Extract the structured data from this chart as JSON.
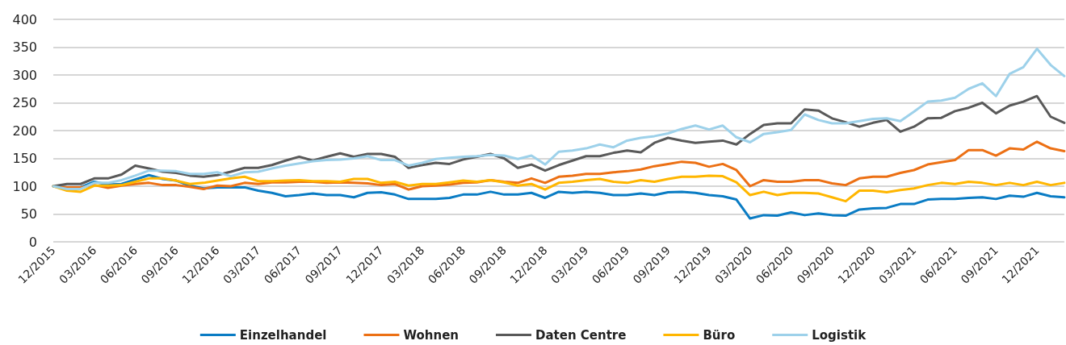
{
  "chart_data": {
    "type": "line",
    "categories": [
      "12/2015",
      null,
      null,
      "03/2016",
      null,
      null,
      "06/2016",
      null,
      null,
      "09/2016",
      null,
      null,
      "12/2016",
      null,
      null,
      "03/2017",
      null,
      null,
      "06/2017",
      null,
      null,
      "09/2017",
      null,
      null,
      "12/2017",
      null,
      null,
      "03/2018",
      null,
      null,
      "06/2018",
      null,
      null,
      "09/2018",
      null,
      null,
      "12/2018",
      null,
      null,
      "03/2019",
      null,
      null,
      "06/2019",
      null,
      null,
      "09/2019",
      null,
      null,
      "12/2019",
      null,
      null,
      "03/2020",
      null,
      null,
      "06/2020",
      null,
      null,
      "09/2020",
      null,
      null,
      "12/2020",
      null,
      null,
      "03/2021",
      null,
      null,
      "06/2021",
      null,
      null,
      "09/2021",
      null,
      null,
      "12/2021",
      null,
      null
    ],
    "series": [
      {
        "name": "Einzelhandel",
        "color": "#0a7cc4",
        "values": [
          100,
          98,
          98,
          108,
          103,
          104,
          112,
          120,
          113,
          110,
          101,
          96,
          98,
          98,
          98,
          92,
          88,
          82,
          84,
          87,
          84,
          84,
          80,
          88,
          89,
          85,
          77,
          77,
          77,
          79,
          85,
          85,
          90,
          85,
          85,
          88,
          79,
          90,
          88,
          90,
          88,
          84,
          84,
          87,
          84,
          89,
          90,
          88,
          84,
          82,
          76,
          42,
          48,
          47,
          53,
          48,
          51,
          48,
          47,
          58,
          60,
          61,
          68,
          68,
          76,
          77,
          77,
          79,
          80,
          77,
          83,
          81,
          88,
          82,
          80
        ]
      },
      {
        "name": "Wohnen",
        "color": "#ec7014",
        "values": [
          100,
          98,
          98,
          102,
          97,
          101,
          104,
          106,
          102,
          102,
          99,
          95,
          101,
          100,
          106,
          104,
          107,
          107,
          108,
          108,
          106,
          107,
          106,
          105,
          102,
          104,
          94,
          100,
          101,
          103,
          106,
          107,
          111,
          108,
          106,
          114,
          106,
          117,
          119,
          122,
          122,
          125,
          127,
          130,
          136,
          140,
          144,
          142,
          135,
          140,
          129,
          100,
          111,
          108,
          108,
          111,
          111,
          105,
          102,
          114,
          117,
          117,
          124,
          129,
          139,
          143,
          147,
          165,
          165,
          155,
          168,
          166,
          180,
          168,
          163
        ]
      },
      {
        "name": "Daten Centre",
        "color": "#595959",
        "values": [
          100,
          104,
          104,
          114,
          114,
          121,
          137,
          132,
          126,
          124,
          119,
          117,
          120,
          126,
          133,
          133,
          138,
          146,
          153,
          146,
          153,
          159,
          153,
          158,
          158,
          153,
          133,
          138,
          142,
          140,
          148,
          153,
          158,
          150,
          133,
          139,
          128,
          138,
          146,
          154,
          154,
          160,
          164,
          161,
          178,
          187,
          182,
          178,
          180,
          182,
          175,
          194,
          210,
          213,
          213,
          238,
          236,
          222,
          215,
          207,
          214,
          219,
          198,
          207,
          222,
          223,
          235,
          241,
          250,
          231,
          245,
          252,
          262,
          225,
          214
        ]
      },
      {
        "name": "Büro",
        "color": "#ffb600",
        "values": [
          100,
          92,
          90,
          101,
          101,
          102,
          108,
          114,
          114,
          110,
          104,
          106,
          110,
          114,
          117,
          109,
          109,
          110,
          111,
          109,
          109,
          108,
          113,
          113,
          106,
          108,
          101,
          104,
          104,
          107,
          110,
          108,
          111,
          107,
          101,
          104,
          94,
          106,
          108,
          111,
          113,
          108,
          106,
          111,
          108,
          113,
          117,
          117,
          119,
          118,
          107,
          84,
          90,
          84,
          88,
          88,
          87,
          80,
          73,
          92,
          92,
          89,
          93,
          96,
          102,
          106,
          104,
          108,
          106,
          102,
          106,
          102,
          108,
          102,
          106
        ]
      },
      {
        "name": "Logistik",
        "color": "#9dd1ea",
        "values": [
          100,
          95,
          95,
          106,
          106,
          111,
          119,
          128,
          128,
          127,
          122,
          122,
          125,
          118,
          125,
          126,
          132,
          137,
          141,
          145,
          147,
          148,
          150,
          154,
          147,
          147,
          137,
          142,
          149,
          151,
          153,
          154,
          156,
          155,
          149,
          155,
          139,
          162,
          164,
          168,
          175,
          170,
          182,
          187,
          190,
          195,
          203,
          209,
          202,
          209,
          188,
          179,
          194,
          197,
          201,
          229,
          219,
          213,
          213,
          217,
          221,
          222,
          217,
          234,
          252,
          254,
          259,
          275,
          285,
          262,
          302,
          314,
          347,
          318,
          298
        ]
      }
    ],
    "ylim": [
      0,
      400
    ],
    "yticks": [
      0,
      50,
      100,
      150,
      200,
      250,
      300,
      350,
      400
    ],
    "grid": "y",
    "legend": "bottom",
    "marker": "none",
    "line_style": "solid"
  }
}
